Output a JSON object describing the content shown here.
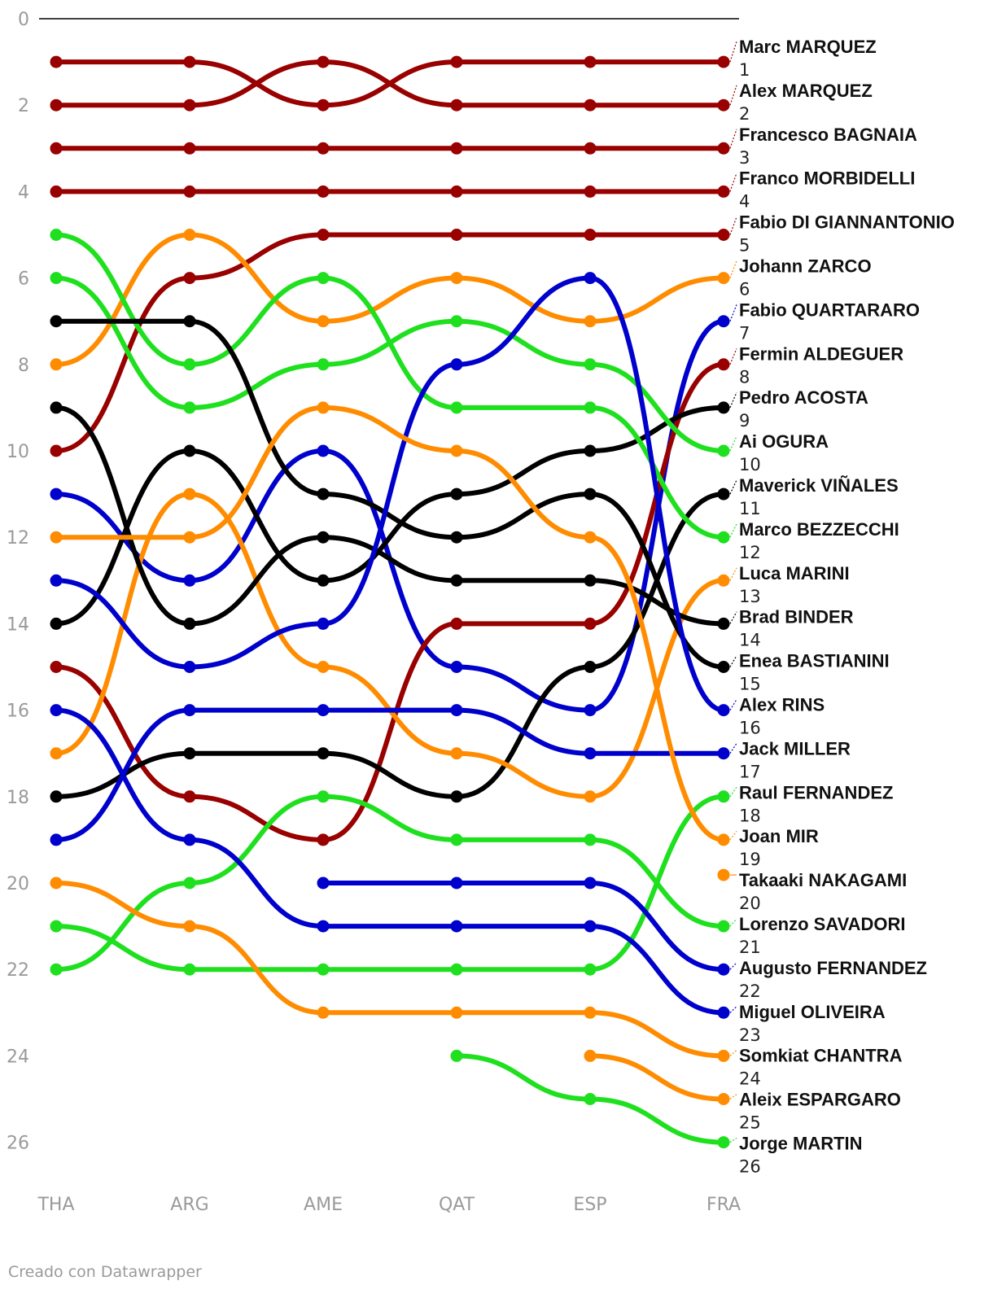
{
  "credit": "Creado con Datawrapper",
  "colors": {
    "red": "#990000",
    "orange": "#ff8c00",
    "green": "#1ee01e",
    "blue": "#0000cc",
    "black": "#000000",
    "axis": "#000000",
    "tick": "#9a9a9a"
  },
  "chart_data": {
    "type": "line",
    "title": "",
    "xlabel": "",
    "ylabel": "",
    "categories": [
      "THA",
      "ARG",
      "AME",
      "QAT",
      "ESP",
      "FRA"
    ],
    "y_ticks": [
      0,
      2,
      4,
      6,
      8,
      10,
      12,
      14,
      16,
      18,
      20,
      22,
      24,
      26
    ],
    "ylim": [
      0,
      26
    ],
    "y_reversed": true,
    "grid": false,
    "legend": "right labels",
    "series": [
      {
        "name": "Marc MARQUEZ",
        "final": "1",
        "color": "red",
        "values": [
          1,
          1,
          2,
          1,
          1,
          1
        ]
      },
      {
        "name": "Alex MARQUEZ",
        "final": "2",
        "color": "red",
        "values": [
          2,
          2,
          1,
          2,
          2,
          2
        ]
      },
      {
        "name": "Francesco BAGNAIA",
        "final": "3",
        "color": "red",
        "values": [
          3,
          3,
          3,
          3,
          3,
          3
        ]
      },
      {
        "name": "Franco MORBIDELLI",
        "final": "4",
        "color": "red",
        "values": [
          4,
          4,
          4,
          4,
          4,
          4
        ]
      },
      {
        "name": "Fabio DI GIANNANTONIO",
        "final": "5",
        "color": "red",
        "values": [
          10,
          6,
          5,
          5,
          5,
          5
        ]
      },
      {
        "name": "Johann ZARCO",
        "final": "6",
        "color": "orange",
        "values": [
          8,
          5,
          7,
          6,
          7,
          6
        ]
      },
      {
        "name": "Fabio QUARTARARO",
        "final": "7",
        "color": "blue",
        "values": [
          11,
          13,
          10,
          15,
          16,
          7
        ]
      },
      {
        "name": "Fermin ALDEGUER",
        "final": "8",
        "color": "red",
        "values": [
          15,
          18,
          19,
          14,
          14,
          8
        ]
      },
      {
        "name": "Pedro ACOSTA",
        "final": "9",
        "color": "black",
        "values": [
          14,
          10,
          13,
          11,
          10,
          9
        ]
      },
      {
        "name": "Ai OGURA",
        "final": "10",
        "color": "green",
        "values": [
          6,
          9,
          8,
          7,
          8,
          10
        ]
      },
      {
        "name": "Maverick VIÑALES",
        "final": "11",
        "color": "black",
        "values": [
          18,
          17,
          17,
          18,
          15,
          11
        ]
      },
      {
        "name": "Marco BEZZECCHI",
        "final": "12",
        "color": "green",
        "values": [
          5,
          8,
          6,
          9,
          9,
          12
        ]
      },
      {
        "name": "Luca MARINI",
        "final": "13",
        "color": "orange",
        "values": [
          17,
          11,
          15,
          17,
          18,
          13
        ]
      },
      {
        "name": "Brad BINDER",
        "final": "14",
        "color": "black",
        "values": [
          9,
          14,
          12,
          13,
          13,
          14
        ]
      },
      {
        "name": "Enea BASTIANINI",
        "final": "15",
        "color": "black",
        "values": [
          7,
          7,
          11,
          12,
          11,
          15
        ]
      },
      {
        "name": "Alex RINS",
        "final": "16",
        "color": "blue",
        "values": [
          13,
          15,
          14,
          8,
          6,
          16
        ]
      },
      {
        "name": "Jack MILLER",
        "final": "17",
        "color": "blue",
        "values": [
          19,
          16,
          16,
          16,
          17,
          17
        ]
      },
      {
        "name": "Raul FERNANDEZ",
        "final": "18",
        "color": "green",
        "values": [
          21,
          22,
          22,
          22,
          22,
          18
        ]
      },
      {
        "name": "Joan MIR",
        "final": "19",
        "color": "orange",
        "values": [
          12,
          12,
          9,
          10,
          12,
          19
        ]
      },
      {
        "name": "Takaaki NAKAGAMI",
        "final": "20",
        "color": "orange",
        "values": [
          null,
          null,
          null,
          null,
          null,
          null
        ]
      },
      {
        "name": "Lorenzo SAVADORI",
        "final": "21",
        "color": "green",
        "values": [
          22,
          20,
          18,
          19,
          19,
          21
        ]
      },
      {
        "name": "Augusto FERNANDEZ",
        "final": "22",
        "color": "blue",
        "values": [
          null,
          null,
          20,
          20,
          20,
          22
        ]
      },
      {
        "name": "Miguel OLIVEIRA",
        "final": "23",
        "color": "blue",
        "values": [
          16,
          19,
          21,
          21,
          21,
          23
        ]
      },
      {
        "name": "Somkiat CHANTRA",
        "final": "24",
        "color": "orange",
        "values": [
          20,
          21,
          23,
          23,
          23,
          24
        ]
      },
      {
        "name": "Aleix ESPARGARO",
        "final": "25",
        "color": "orange",
        "values": [
          null,
          null,
          null,
          null,
          24,
          25
        ]
      },
      {
        "name": "Jorge MARTIN",
        "final": "26",
        "color": "green",
        "values": [
          null,
          null,
          null,
          24,
          25,
          26
        ]
      }
    ]
  }
}
